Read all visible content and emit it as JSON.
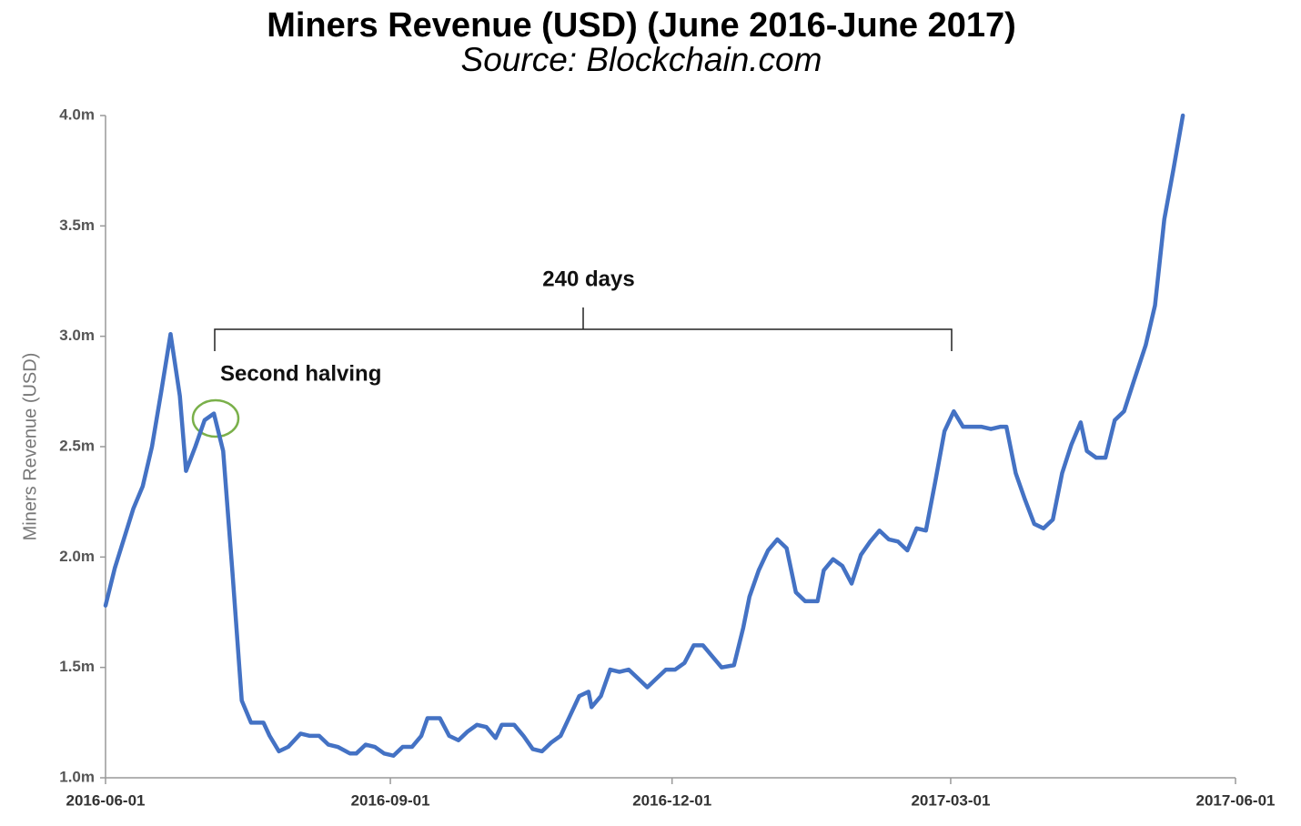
{
  "chart_data": {
    "type": "line",
    "title": "Miners Revenue (USD) (June 2016-June 2017)",
    "subtitle": "Source: Blockchain.com",
    "y_label": "Miners Revenue  (USD)",
    "annotations": [
      "240 days",
      "Second halving"
    ],
    "x": [
      "2016-06-01",
      "2016-06-04",
      "2016-06-10",
      "2016-06-13",
      "2016-06-16",
      "2016-06-19",
      "2016-06-22",
      "2016-06-25",
      "2016-06-27",
      "2016-06-30",
      "2016-07-03",
      "2016-07-06",
      "2016-07-09",
      "2016-07-12",
      "2016-07-15",
      "2016-07-18",
      "2016-07-22",
      "2016-07-24",
      "2016-07-27",
      "2016-07-30",
      "2016-08-03",
      "2016-08-06",
      "2016-08-09",
      "2016-08-12",
      "2016-08-15",
      "2016-08-19",
      "2016-08-21",
      "2016-08-24",
      "2016-08-27",
      "2016-08-30",
      "2016-09-02",
      "2016-09-05",
      "2016-09-08",
      "2016-09-11",
      "2016-09-13",
      "2016-09-17",
      "2016-09-20",
      "2016-09-23",
      "2016-09-26",
      "2016-09-29",
      "2016-10-02",
      "2016-10-05",
      "2016-10-07",
      "2016-10-11",
      "2016-10-14",
      "2016-10-17",
      "2016-10-20",
      "2016-10-23",
      "2016-10-26",
      "2016-10-29",
      "2016-11-01",
      "2016-11-04",
      "2016-11-05",
      "2016-11-08",
      "2016-11-11",
      "2016-11-14",
      "2016-11-17",
      "2016-11-20",
      "2016-11-23",
      "2016-11-26",
      "2016-11-29",
      "2016-12-02",
      "2016-12-05",
      "2016-12-08",
      "2016-12-11",
      "2016-12-14",
      "2016-12-17",
      "2016-12-21",
      "2016-12-24",
      "2016-12-26",
      "2016-12-29",
      "2017-01-01",
      "2017-01-04",
      "2017-01-07",
      "2017-01-10",
      "2017-01-13",
      "2017-01-17",
      "2017-01-19",
      "2017-01-22",
      "2017-01-25",
      "2017-01-28",
      "2017-01-31",
      "2017-02-03",
      "2017-02-06",
      "2017-02-09",
      "2017-02-12",
      "2017-02-15",
      "2017-02-18",
      "2017-02-21",
      "2017-02-24",
      "2017-02-27",
      "2017-03-02",
      "2017-03-05",
      "2017-03-08",
      "2017-03-11",
      "2017-03-14",
      "2017-03-17",
      "2017-03-19",
      "2017-03-22",
      "2017-03-25",
      "2017-03-28",
      "2017-03-31",
      "2017-04-03",
      "2017-04-06",
      "2017-04-09",
      "2017-04-12",
      "2017-04-14",
      "2017-04-17",
      "2017-04-20",
      "2017-04-23",
      "2017-04-26",
      "2017-04-29",
      "2017-05-03",
      "2017-05-06",
      "2017-05-09",
      "2017-05-12",
      "2017-05-15"
    ],
    "series": [
      {
        "name": "Miners Revenue",
        "color": "#4472c4",
        "values": [
          1780000,
          1950000,
          2220000,
          2320000,
          2500000,
          2750000,
          3010000,
          2730000,
          2390000,
          2500000,
          2620000,
          2650000,
          2480000,
          1930000,
          1350000,
          1250000,
          1250000,
          1190000,
          1120000,
          1140000,
          1200000,
          1190000,
          1190000,
          1150000,
          1140000,
          1110000,
          1110000,
          1150000,
          1140000,
          1110000,
          1100000,
          1140000,
          1140000,
          1190000,
          1270000,
          1270000,
          1190000,
          1170000,
          1210000,
          1240000,
          1230000,
          1180000,
          1240000,
          1240000,
          1190000,
          1130000,
          1120000,
          1160000,
          1190000,
          1280000,
          1370000,
          1390000,
          1320000,
          1370000,
          1490000,
          1480000,
          1490000,
          1450000,
          1410000,
          1450000,
          1490000,
          1490000,
          1520000,
          1600000,
          1600000,
          1550000,
          1500000,
          1510000,
          1680000,
          1820000,
          1940000,
          2030000,
          2080000,
          2040000,
          1840000,
          1800000,
          1800000,
          1940000,
          1990000,
          1960000,
          1880000,
          2010000,
          2070000,
          2120000,
          2080000,
          2070000,
          2030000,
          2130000,
          2120000,
          2340000,
          2570000,
          2660000,
          2590000,
          2590000,
          2590000,
          2580000,
          2590000,
          2590000,
          2380000,
          2260000,
          2150000,
          2130000,
          2170000,
          2380000,
          2510000,
          2610000,
          2480000,
          2450000,
          2450000,
          2620000,
          2660000,
          2790000,
          2960000,
          3140000,
          3530000,
          3760000,
          4000000
        ]
      }
    ],
    "xlim": [
      "2016-06-01",
      "2017-06-01"
    ],
    "xticks": [
      "2016-06-01",
      "2016-09-01",
      "2016-12-01",
      "2017-03-01",
      "2017-06-01"
    ],
    "ylim": [
      1000000,
      4000000
    ],
    "yticks": [
      {
        "value": 1000000,
        "label": "1.0m"
      },
      {
        "value": 1500000,
        "label": "1.5m"
      },
      {
        "value": 2000000,
        "label": "2.0m"
      },
      {
        "value": 2500000,
        "label": "2.5m"
      },
      {
        "value": 3000000,
        "label": "3.0m"
      },
      {
        "value": 3500000,
        "label": "3.5m"
      },
      {
        "value": 4000000,
        "label": "4.0m"
      }
    ],
    "grid": false
  }
}
